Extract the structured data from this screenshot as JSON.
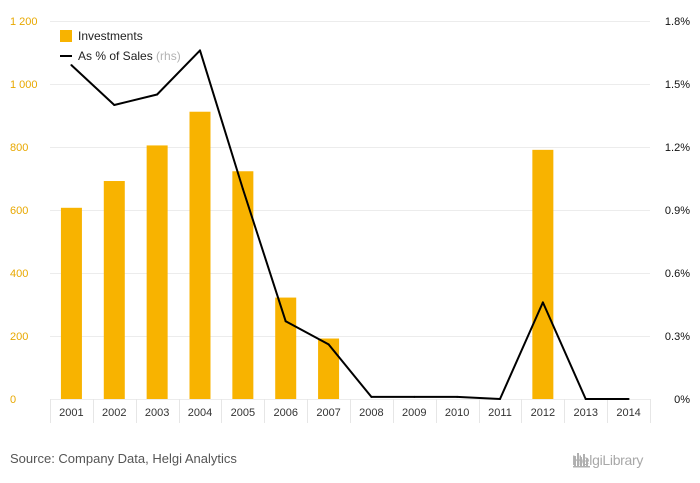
{
  "chart_data": {
    "type": "bar",
    "categories": [
      "2001",
      "2002",
      "2003",
      "2004",
      "2005",
      "2006",
      "2007",
      "2008",
      "2009",
      "2010",
      "2011",
      "2012",
      "2013",
      "2014"
    ],
    "series": [
      {
        "name": "Investments",
        "kind": "bar",
        "axis": "left",
        "color": "#f8b300",
        "values": [
          607,
          692,
          805,
          912,
          723,
          322,
          192,
          0,
          0,
          0,
          0,
          791,
          0,
          0
        ]
      },
      {
        "name": "As % of Sales",
        "note": "(rhs)",
        "kind": "line",
        "axis": "right",
        "color": "#000000",
        "values": [
          1.59,
          1.4,
          1.45,
          1.66,
          1.0,
          0.37,
          0.26,
          0.01,
          0.01,
          0.01,
          0.0,
          0.46,
          0.0,
          0.0
        ]
      }
    ],
    "y_left": {
      "ylim": [
        0,
        1200
      ],
      "ticks": [
        0,
        200,
        400,
        600,
        800,
        1000,
        1200
      ],
      "tick_labels": [
        "0",
        "200",
        "400",
        "600",
        "800",
        "1 000",
        "1 200"
      ]
    },
    "y_right": {
      "ylim": [
        0,
        1.8
      ],
      "ticks": [
        0,
        0.3,
        0.6,
        0.9,
        1.2,
        1.5,
        1.8
      ],
      "tick_labels": [
        "0%",
        "0.3%",
        "0.6%",
        "0.9%",
        "1.2%",
        "1.5%",
        "1.8%"
      ]
    },
    "grid": true,
    "legend_position": "top-left"
  },
  "footer": {
    "source": "Source: Company Data, Helgi Analytics",
    "brand": "HelgiLibrary"
  }
}
